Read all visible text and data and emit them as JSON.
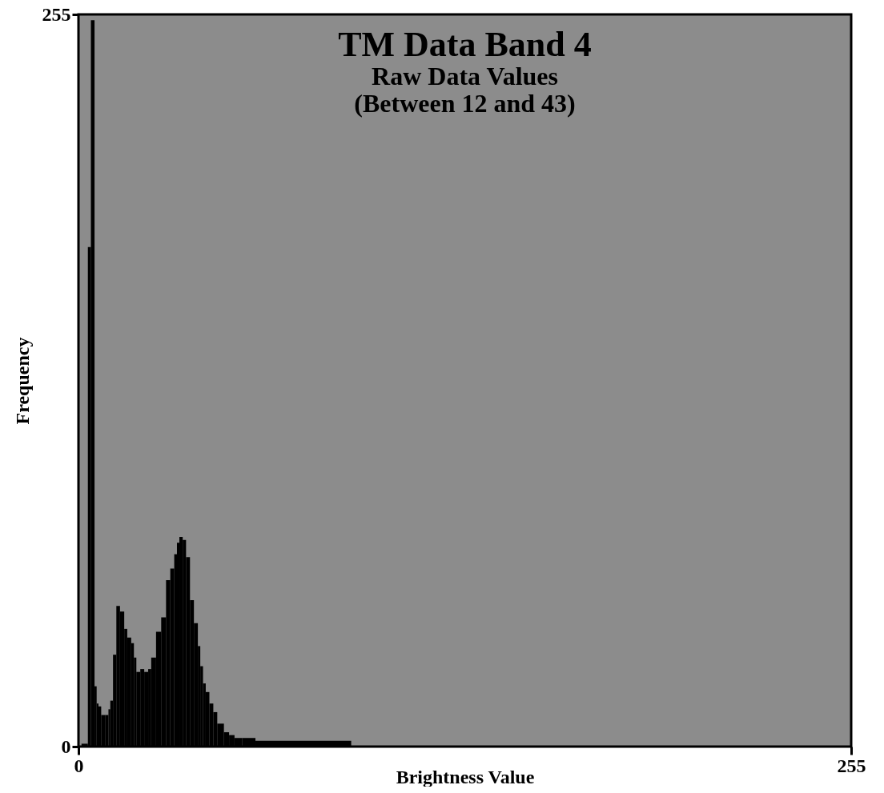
{
  "chart_data": {
    "type": "histogram",
    "title": "TM Data Band 4",
    "subtitle": "Raw Data Values\n(Between 12 and 43)",
    "xlabel": "Brightness Value",
    "ylabel": "Frequency",
    "color": "#000000",
    "bins": [
      1,
      3.1,
      4.1,
      5.3,
      6,
      6.6,
      7.5,
      8.8,
      9.9,
      10.5,
      11.4,
      12.5,
      13.7,
      15.1,
      16.1,
      17.4,
      18.3,
      19.1,
      20.4,
      21.7,
      23,
      24,
      25.6,
      27.3,
      28.9,
      30.3,
      31.6,
      32.5,
      33.3,
      34.4,
      35.5,
      36.8,
      38.1,
      39.4,
      40.2,
      41.1,
      42,
      43.2,
      44.5,
      45.8,
      48,
      49.7,
      51.5,
      54,
      58.4,
      90
    ],
    "values": [
      1,
      174,
      253,
      21,
      15,
      14,
      11,
      11,
      13,
      16,
      32,
      49,
      47,
      41,
      38,
      36,
      31,
      26,
      27,
      26,
      27,
      31,
      40,
      45,
      58,
      62,
      67,
      71,
      73,
      72,
      66,
      51,
      43,
      35,
      28,
      22,
      19,
      15,
      12,
      8,
      5,
      4,
      3,
      3,
      2
    ],
    "xlim": [
      0,
      255
    ],
    "xticks": [
      0,
      255
    ],
    "ylim": [
      0,
      255
    ],
    "yticks": [
      0,
      255
    ]
  }
}
